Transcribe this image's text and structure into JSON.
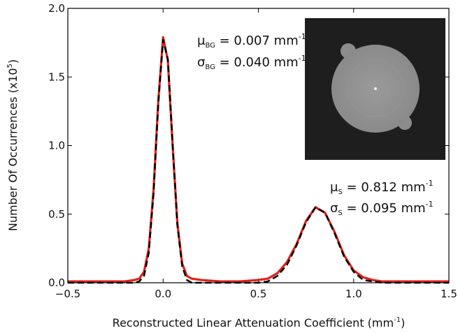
{
  "chart_data": {
    "type": "line",
    "x_label": [
      "Reconstructed Linear Attenuation Coefficient (mm",
      "-1",
      ")"
    ],
    "y_label": [
      "Number Of Occurrences (x10",
      "5",
      ")"
    ],
    "annotations": [
      [
        "μ",
        "BG",
        " = 0.007 mm",
        "-1"
      ],
      [
        "σ",
        "BG",
        " = 0.040 mm",
        "-1"
      ],
      [
        "μ",
        "S",
        " = 0.812 mm",
        "-1"
      ],
      [
        "σ",
        "S",
        " = 0.095 mm",
        "-1"
      ]
    ],
    "xlim": [
      -0.5,
      1.5
    ],
    "ylim": [
      0,
      2.0
    ],
    "xticks": [
      {
        "value": -0.5,
        "label": "−0.5"
      },
      {
        "value": 0,
        "label": "0.0"
      },
      0.5,
      {
        "value": 1.0,
        "label": "1.0"
      },
      1.5
    ],
    "yticks": [
      {
        "value": 0,
        "label": "0.0"
      },
      0.5,
      {
        "value": 1.0,
        "label": "1.0"
      },
      1.5,
      {
        "value": 2.0,
        "label": "2.0"
      }
    ],
    "x": [
      -0.5,
      -0.3,
      -0.2,
      -0.15,
      -0.125,
      -0.1,
      -0.075,
      -0.05,
      -0.025,
      0,
      0.025,
      0.05,
      0.075,
      0.1,
      0.125,
      0.15,
      0.2,
      0.3,
      0.4,
      0.5,
      0.55,
      0.6,
      0.65,
      0.7,
      0.75,
      0.8,
      0.85,
      0.9,
      0.95,
      1.0,
      1.05,
      1.1,
      1.15,
      1.2,
      1.3,
      1.5
    ],
    "series": [
      {
        "color": "#e0201b",
        "linestyle": "solid",
        "values": [
          0.01,
          0.01,
          0.01,
          0.02,
          0.03,
          0.08,
          0.25,
          0.68,
          1.33,
          1.79,
          1.62,
          1.0,
          0.43,
          0.14,
          0.05,
          0.03,
          0.02,
          0.01,
          0.01,
          0.02,
          0.03,
          0.07,
          0.15,
          0.28,
          0.45,
          0.55,
          0.51,
          0.37,
          0.2,
          0.09,
          0.04,
          0.02,
          0.01,
          0.01,
          0.01,
          0.01
        ]
      },
      {
        "color": "#000000",
        "linestyle": "dashed",
        "values": [
          0,
          0,
          0,
          0,
          0.01,
          0.05,
          0.22,
          0.65,
          1.31,
          1.77,
          1.63,
          1.01,
          0.42,
          0.12,
          0.02,
          0,
          0,
          0,
          0,
          0,
          0.01,
          0.05,
          0.13,
          0.27,
          0.44,
          0.55,
          0.51,
          0.36,
          0.19,
          0.08,
          0.02,
          0.01,
          0,
          0,
          0,
          0
        ]
      }
    ]
  }
}
